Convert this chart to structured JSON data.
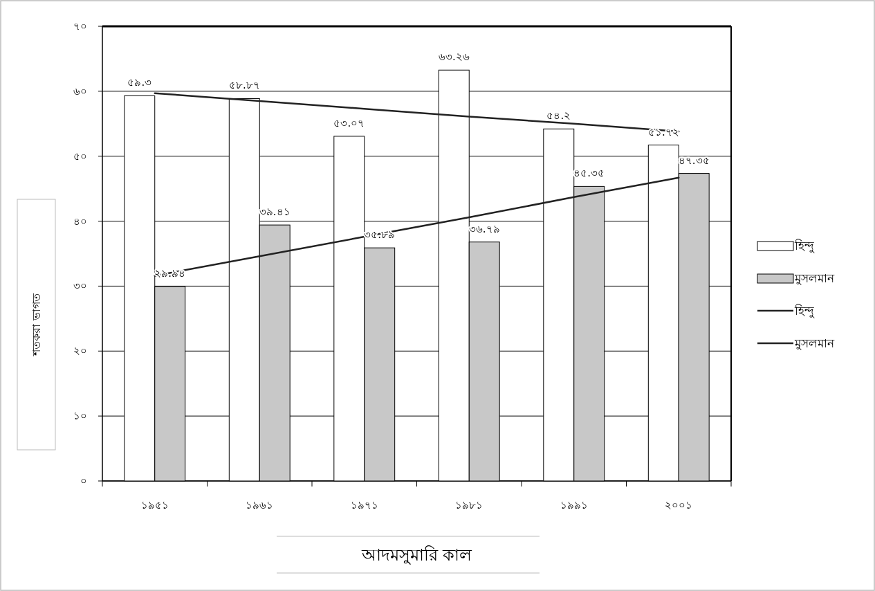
{
  "chart_data": {
    "type": "bar",
    "xlabel": "আদমসুমারি কাল",
    "ylabel": "শতকরা ভাগত",
    "categories": [
      "১৯৫১",
      "১৯৬১",
      "১৯৭১",
      "১৯৮১",
      "১৯৯১",
      "২০০১"
    ],
    "series": [
      {
        "name": "হিন্দু",
        "color": "#ffffff",
        "values": [
          59.3,
          58.87,
          53.07,
          63.26,
          54.2,
          51.72
        ],
        "value_labels": [
          "৫৯.৩",
          "৫৮.৮৭",
          "৫৩.০৭",
          "৬৩.২৬",
          "৫৪.২",
          "৫১.৭২"
        ]
      },
      {
        "name": "মুসলমান",
        "color": "#c8c8c8",
        "values": [
          29.94,
          39.41,
          35.89,
          36.79,
          45.35,
          47.35
        ],
        "value_labels": [
          "২৯.৯৪",
          "৩৯.৪১",
          "৩৫.৮৯",
          "৩৬.৭৯",
          "৪৫.৩৫",
          "৪৭.৩৫"
        ]
      },
      {
        "name": "হিন্দু",
        "type": "line",
        "color": "#222222",
        "values": [
          59.7,
          58.5,
          57.3,
          56.1,
          55.0,
          53.8
        ]
      },
      {
        "name": "মুসলমান",
        "type": "line",
        "color": "#222222",
        "values": [
          31.6,
          34.6,
          37.6,
          40.6,
          43.7,
          46.7
        ]
      }
    ],
    "ylim": [
      0,
      70
    ],
    "yticks": [
      {
        "value": 0,
        "label": "০"
      },
      {
        "value": 10,
        "label": "১০"
      },
      {
        "value": 20,
        "label": "২০"
      },
      {
        "value": 30,
        "label": "৩০"
      },
      {
        "value": 40,
        "label": "৪০"
      },
      {
        "value": 50,
        "label": "৫০"
      },
      {
        "value": 60,
        "label": "৬০"
      },
      {
        "value": 70,
        "label": "৭০"
      }
    ],
    "grid": "y",
    "legend": "right"
  }
}
